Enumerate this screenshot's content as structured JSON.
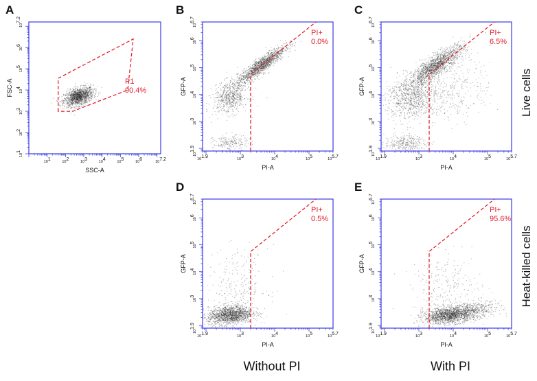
{
  "colors": {
    "axis": "#3a3ae6",
    "gate": "#e2222f",
    "dots": "#222222",
    "text": "#111111"
  },
  "row_labels": {
    "live": "Live cells",
    "heat": "Heat-killed cells"
  },
  "col_labels": {
    "without": "Without PI",
    "with": "With PI"
  },
  "chart_data": [
    {
      "panel": "A",
      "type": "scatter",
      "xlabel": "SSC-A",
      "ylabel": "FSC-A",
      "xlim": [
        0,
        7.2
      ],
      "ylim": [
        1,
        7.2
      ],
      "xticks": [
        "10^1",
        "10^2",
        "10^3",
        "10^4",
        "10^5",
        "10^6",
        "10^7.2"
      ],
      "xtick_values": [
        1,
        2,
        3,
        4,
        5,
        6,
        7.2
      ],
      "yticks": [
        "10^1",
        "10^2",
        "10^3",
        "10^4",
        "10^5",
        "10^6",
        "10^7.2"
      ],
      "ytick_values": [
        1,
        2,
        3,
        4,
        5,
        6,
        7.2
      ],
      "gate": {
        "name": "P1",
        "percent": "90.4%",
        "vertices": [
          [
            1.6,
            3.0
          ],
          [
            1.6,
            4.55
          ],
          [
            5.7,
            6.4
          ],
          [
            5.4,
            4.0
          ],
          [
            2.4,
            3.0
          ]
        ]
      },
      "populations": [
        {
          "cx": 2.7,
          "cy": 3.7,
          "sx": 0.4,
          "sy": 0.22,
          "rho": 0.4,
          "n": 1400
        }
      ]
    },
    {
      "panel": "B",
      "type": "scatter",
      "xlabel": "PI-A",
      "ylabel": "GFP-A",
      "xlim": [
        1.9,
        5.7
      ],
      "ylim": [
        1.9,
        6.7
      ],
      "xticks": [
        "10^1.9",
        "10^3",
        "10^4",
        "10^5",
        "10^5.7"
      ],
      "xtick_values": [
        1.9,
        3,
        4,
        5,
        5.7
      ],
      "yticks": [
        "10^1.9",
        "10^3",
        "10^4",
        "10^5",
        "10^6",
        "10^6.7"
      ],
      "ytick_values": [
        1.9,
        3,
        4,
        5,
        6,
        6.7
      ],
      "gate": {
        "name": "PI+",
        "percent": "0.0%",
        "vertices": [
          [
            3.3,
            1.9
          ],
          [
            3.3,
            4.75
          ],
          [
            5.2,
            6.7
          ]
        ]
      },
      "populations": [
        {
          "cx": 3.6,
          "cy": 5.1,
          "sx": 0.35,
          "sy": 0.35,
          "rho": 0.9,
          "n": 1400
        },
        {
          "cx": 2.7,
          "cy": 3.9,
          "sx": 0.25,
          "sy": 0.3,
          "rho": 0.2,
          "n": 600
        },
        {
          "cx": 2.7,
          "cy": 2.2,
          "sx": 0.25,
          "sy": 0.15,
          "rho": 0,
          "n": 200
        }
      ]
    },
    {
      "panel": "C",
      "type": "scatter",
      "xlabel": "PI-A",
      "ylabel": "GFP-A",
      "xlim": [
        1.9,
        5.7
      ],
      "ylim": [
        1.9,
        6.7
      ],
      "xticks": [
        "10^1.9",
        "10^3",
        "10^4",
        "10^5",
        "10^5.7"
      ],
      "xtick_values": [
        1.9,
        3,
        4,
        5,
        5.7
      ],
      "yticks": [
        "10^1.9",
        "10^3",
        "10^4",
        "10^5",
        "10^6",
        "10^6.7"
      ],
      "ytick_values": [
        1.9,
        3,
        4,
        5,
        6,
        6.7
      ],
      "gate": {
        "name": "PI+",
        "percent": "6.5%",
        "vertices": [
          [
            3.3,
            1.9
          ],
          [
            3.3,
            4.75
          ],
          [
            5.2,
            6.7
          ]
        ]
      },
      "populations": [
        {
          "cx": 3.5,
          "cy": 5.1,
          "sx": 0.4,
          "sy": 0.38,
          "rho": 0.85,
          "n": 1500
        },
        {
          "cx": 2.8,
          "cy": 3.9,
          "sx": 0.4,
          "sy": 0.4,
          "rho": 0.1,
          "n": 900
        },
        {
          "cx": 2.6,
          "cy": 2.2,
          "sx": 0.3,
          "sy": 0.15,
          "rho": 0,
          "n": 300
        },
        {
          "cx": 4.1,
          "cy": 4.2,
          "sx": 0.5,
          "sy": 0.6,
          "rho": 0.2,
          "n": 300
        }
      ]
    },
    {
      "panel": "D",
      "type": "scatter",
      "xlabel": "PI-A",
      "ylabel": "GFP-A",
      "xlim": [
        1.9,
        5.7
      ],
      "ylim": [
        1.9,
        6.7
      ],
      "xticks": [
        "10^1.9",
        "10^3",
        "10^4",
        "10^5",
        "10^5.7"
      ],
      "xtick_values": [
        1.9,
        3,
        4,
        5,
        5.7
      ],
      "yticks": [
        "10^1.9",
        "10^3",
        "10^4",
        "10^5",
        "10^6",
        "10^6.7"
      ],
      "ytick_values": [
        1.9,
        3,
        4,
        5,
        6,
        6.7
      ],
      "gate": {
        "name": "PI+",
        "percent": "0.5%",
        "vertices": [
          [
            3.3,
            1.9
          ],
          [
            3.3,
            4.75
          ],
          [
            5.2,
            6.7
          ]
        ]
      },
      "populations": [
        {
          "cx": 2.7,
          "cy": 2.4,
          "sx": 0.32,
          "sy": 0.18,
          "rho": 0.2,
          "n": 1500
        },
        {
          "cx": 2.9,
          "cy": 3.4,
          "sx": 0.45,
          "sy": 0.7,
          "rho": 0.1,
          "n": 250
        }
      ]
    },
    {
      "panel": "E",
      "type": "scatter",
      "xlabel": "PI-A",
      "ylabel": "GFP-A",
      "xlim": [
        1.9,
        5.7
      ],
      "ylim": [
        1.9,
        6.7
      ],
      "xticks": [
        "10^1.9",
        "10^3",
        "10^4",
        "10^5",
        "10^5.7"
      ],
      "xtick_values": [
        1.9,
        3,
        4,
        5,
        5.7
      ],
      "yticks": [
        "10^1.9",
        "10^3",
        "10^4",
        "10^5",
        "10^6",
        "10^6.7"
      ],
      "ytick_values": [
        1.9,
        3,
        4,
        5,
        6,
        6.7
      ],
      "gate": {
        "name": "PI+",
        "percent": "95.6%",
        "vertices": [
          [
            3.3,
            1.9
          ],
          [
            3.3,
            4.75
          ],
          [
            5.2,
            6.7
          ]
        ]
      },
      "populations": [
        {
          "cx": 3.9,
          "cy": 2.4,
          "sx": 0.38,
          "sy": 0.16,
          "rho": 0.3,
          "n": 1600
        },
        {
          "cx": 4.7,
          "cy": 2.6,
          "sx": 0.35,
          "sy": 0.18,
          "rho": 0.3,
          "n": 350
        },
        {
          "cx": 3.8,
          "cy": 3.4,
          "sx": 0.5,
          "sy": 0.6,
          "rho": 0.1,
          "n": 250
        }
      ]
    }
  ]
}
